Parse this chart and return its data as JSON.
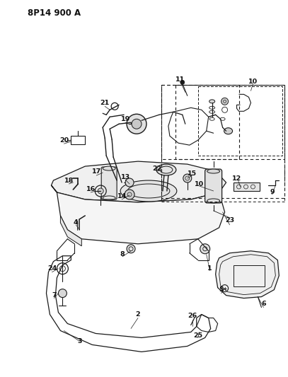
{
  "title": "8P14 900 A",
  "bg_color": "#ffffff",
  "lc": "#1a1a1a",
  "figsize": [
    4.07,
    5.33
  ],
  "dpi": 100
}
